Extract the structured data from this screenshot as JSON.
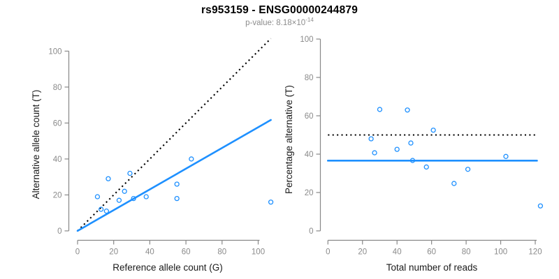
{
  "header": {
    "title": "rs953159 - ENSG00000244879",
    "pvalue_label": "p-value: ",
    "pvalue_mantissa": "8.18",
    "times_sign": "×",
    "base": "10",
    "exponent": "-14"
  },
  "style": {
    "accent_blue": "#1E90FF",
    "axis_color": "#888888",
    "tick_label_color": "#8a8a8a",
    "axis_title_color": "#1a1a1a",
    "title_color": "#000000",
    "subtitle_color": "#8c8c8c",
    "background": "#ffffff"
  },
  "chart_data": [
    {
      "name": "allele-count-scatter",
      "type": "scatter",
      "xlabel": "Reference allele count (G)",
      "ylabel": "Alternative allele count (T)",
      "xlim": [
        0,
        107
      ],
      "ylim": [
        0,
        107
      ],
      "xticks": [
        0,
        20,
        40,
        60,
        80,
        100
      ],
      "yticks": [
        0,
        20,
        40,
        60,
        80,
        100
      ],
      "grid": false,
      "legend": "none",
      "marker": "open-circle",
      "point_color": "#1E90FF",
      "points": [
        [
          11,
          19
        ],
        [
          13,
          12
        ],
        [
          16,
          11
        ],
        [
          17,
          29
        ],
        [
          23,
          17
        ],
        [
          26,
          22
        ],
        [
          29,
          32
        ],
        [
          31,
          18
        ],
        [
          38,
          19
        ],
        [
          55,
          26
        ],
        [
          55,
          18
        ],
        [
          63,
          40
        ],
        [
          107,
          16
        ]
      ],
      "lines": [
        {
          "name": "identity-1to1-line",
          "style": "dotted",
          "color": "#000000",
          "from": [
            0,
            0
          ],
          "to": [
            107,
            107
          ]
        },
        {
          "name": "fitted-ratio-line",
          "style": "solid",
          "color": "#1E90FF",
          "from": [
            0,
            0
          ],
          "to": [
            107,
            61.7
          ]
        }
      ]
    },
    {
      "name": "percentage-scatter",
      "type": "scatter",
      "xlabel": "Total number of reads",
      "ylabel": "Percentage alternative (T)",
      "xlim": [
        0,
        123
      ],
      "ylim": [
        0,
        100
      ],
      "xticks": [
        0,
        20,
        40,
        60,
        80,
        100,
        120
      ],
      "yticks": [
        0,
        20,
        40,
        60,
        80,
        100
      ],
      "grid": false,
      "legend": "none",
      "marker": "open-circle",
      "point_color": "#1E90FF",
      "points": [
        [
          30,
          63.3
        ],
        [
          25,
          48
        ],
        [
          27,
          40.7
        ],
        [
          46,
          63
        ],
        [
          40,
          42.5
        ],
        [
          48,
          45.8
        ],
        [
          61,
          52.5
        ],
        [
          49,
          36.7
        ],
        [
          57,
          33.3
        ],
        [
          81,
          32.1
        ],
        [
          73,
          24.7
        ],
        [
          103,
          38.8
        ],
        [
          123,
          13
        ]
      ],
      "lines": [
        {
          "name": "expected-50pct-line",
          "style": "dotted",
          "color": "#000000",
          "from": [
            0,
            50
          ],
          "to": [
            121,
            50
          ]
        },
        {
          "name": "mean-percentage-line",
          "style": "solid",
          "color": "#1E90FF",
          "from": [
            0,
            36.6
          ],
          "to": [
            121,
            36.6
          ]
        }
      ]
    }
  ]
}
